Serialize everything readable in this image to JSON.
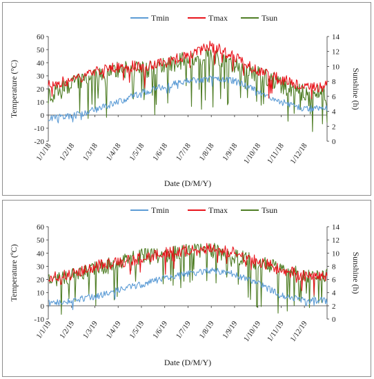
{
  "chart_data": [
    {
      "type": "line",
      "title": "",
      "xlabel": "Date (D/M/Y)",
      "ylabel": "Temperature  (°C)",
      "y2label": "Sunshine (h)",
      "ylim": [
        -20,
        60
      ],
      "yticks": [
        "-20",
        "-10",
        "0",
        "10",
        "20",
        "30",
        "40",
        "50",
        "60"
      ],
      "y2lim": [
        0,
        14
      ],
      "y2ticks": [
        "0",
        "2",
        "4",
        "6",
        "8",
        "10",
        "12",
        "14"
      ],
      "grid": false,
      "legend": "top-center",
      "x": [
        "1/1/18",
        "1/2/18",
        "1/3/18",
        "1/4/18",
        "1/5/18",
        "1/6/18",
        "1/7/18",
        "1/8/18",
        "1/9/18",
        "1/10/18",
        "1/11/18",
        "1/12/18"
      ],
      "series": [
        {
          "name": "Tmin",
          "axis": "left",
          "color": "#5b9bd5",
          "values": [
            -2,
            -1,
            4,
            10,
            17,
            22,
            26,
            28,
            26,
            18,
            10,
            5
          ]
        },
        {
          "name": "Tmax",
          "axis": "left",
          "color": "#e8131b",
          "values": [
            22,
            27,
            33,
            37,
            37,
            40,
            45,
            53,
            44,
            33,
            27,
            22
          ]
        },
        {
          "name": "Tsun",
          "axis": "right",
          "color": "#4e7d24",
          "values": [
            6.0,
            7.5,
            8.5,
            9.5,
            9.5,
            10.0,
            11.0,
            11.5,
            10.0,
            9.0,
            7.5,
            6.5
          ]
        }
      ]
    },
    {
      "type": "line",
      "title": "",
      "xlabel": "Date (D/M/Y)",
      "ylabel": "Temperature (ºC)",
      "y2label": "Sunshine (h)",
      "ylim": [
        -10,
        60
      ],
      "yticks": [
        "-10",
        "0",
        "10",
        "20",
        "30",
        "40",
        "50",
        "60"
      ],
      "y2lim": [
        0,
        14
      ],
      "y2ticks": [
        "0",
        "2",
        "4",
        "6",
        "8",
        "10",
        "12",
        "14"
      ],
      "grid": false,
      "legend": "top-center",
      "x": [
        "1/1/19",
        "1/2/19",
        "1/3/19",
        "1/4/19",
        "1/5/19",
        "1/6/19",
        "1/7/19",
        "1/8/19",
        "1/9/19",
        "1/10/19",
        "1/11/19",
        "1/12/19"
      ],
      "series": [
        {
          "name": "Tmin",
          "axis": "left",
          "color": "#5b9bd5",
          "values": [
            2,
            4,
            7,
            12,
            16,
            21,
            24,
            27,
            24,
            17,
            8,
            4
          ]
        },
        {
          "name": "Tmax",
          "axis": "left",
          "color": "#e8131b",
          "values": [
            22,
            24,
            30,
            33,
            36,
            40,
            42,
            44,
            40,
            34,
            27,
            23
          ]
        },
        {
          "name": "Tsun",
          "axis": "right",
          "color": "#4e7d24",
          "values": [
            5.5,
            6.5,
            7.5,
            8.5,
            9.5,
            9.5,
            10.5,
            10.5,
            9.5,
            8.5,
            7.5,
            6.5
          ]
        }
      ]
    }
  ]
}
